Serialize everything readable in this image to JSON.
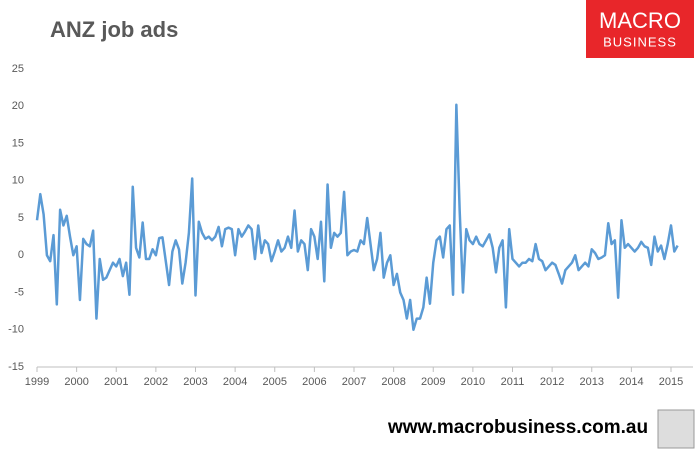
{
  "chart_data": {
    "type": "line",
    "title": "ANZ job ads",
    "categories": [
      "1999",
      null,
      null,
      null,
      null,
      null,
      null,
      null,
      null,
      null,
      null,
      null,
      "2000",
      null,
      null,
      null,
      null,
      null,
      null,
      null,
      null,
      null,
      null,
      null,
      "2001",
      null,
      null,
      null,
      null,
      null,
      null,
      null,
      null,
      null,
      null,
      null,
      "2002",
      null,
      null,
      null,
      null,
      null,
      null,
      null,
      null,
      null,
      null,
      null,
      "2003",
      null,
      null,
      null,
      null,
      null,
      null,
      null,
      null,
      null,
      null,
      null,
      "2004",
      null,
      null,
      null,
      null,
      null,
      null,
      null,
      null,
      null,
      null,
      null,
      "2005",
      null,
      null,
      null,
      null,
      null,
      null,
      null,
      null,
      null,
      null,
      null,
      "2006",
      null,
      null,
      null,
      null,
      null,
      null,
      null,
      null,
      null,
      null,
      null,
      "2007",
      null,
      null,
      null,
      null,
      null,
      null,
      null,
      null,
      null,
      null,
      null,
      "2008",
      null,
      null,
      null,
      null,
      null,
      null,
      null,
      null,
      null,
      null,
      null,
      "2009",
      null,
      null,
      null,
      null,
      null,
      null,
      null,
      null,
      null,
      null,
      null,
      "2010",
      null,
      null,
      null,
      null,
      null,
      null,
      null,
      null,
      null,
      null,
      null,
      "2011",
      null,
      null,
      null,
      null,
      null,
      null,
      null,
      null,
      null,
      null,
      null,
      "2012",
      null,
      null,
      null,
      null,
      null,
      null,
      null,
      null,
      null,
      null,
      null,
      "2013",
      null,
      null,
      null,
      null,
      null,
      null,
      null,
      null,
      null,
      null,
      null,
      "2014",
      null,
      null,
      null,
      null,
      null,
      null,
      null,
      null,
      null,
      null,
      null,
      "2015",
      null,
      null
    ],
    "values": [
      4.7,
      8.2,
      5.5,
      0,
      -0.8,
      2.7,
      -6.6,
      6.1,
      4,
      5.3,
      2.5,
      0,
      1.2,
      -6,
      2.2,
      1.5,
      1.2,
      3.3,
      -8.5,
      -0.5,
      -3.3,
      -3,
      -2,
      -1,
      -1.5,
      -0.5,
      -2.8,
      -1,
      -5.3,
      9.2,
      1,
      -0.3,
      4.4,
      -0.5,
      -0.5,
      0.8,
      0,
      2.3,
      2.4,
      -0.8,
      -4,
      0.5,
      2,
      0.8,
      -3.8,
      -1,
      3,
      10.3,
      -5.4,
      4.5,
      3,
      2.2,
      2.5,
      2,
      2.5,
      3.8,
      1.2,
      3.5,
      3.7,
      3.5,
      0,
      3.5,
      2.5,
      3.2,
      4,
      3.5,
      -0.5,
      4,
      0.3,
      2,
      1.5,
      -0.8,
      0.5,
      2,
      0.5,
      1,
      2.5,
      1,
      6,
      0.5,
      2,
      1.5,
      -2,
      3.5,
      2.5,
      -0.5,
      4.5,
      -3.5,
      9.5,
      1,
      3,
      2.5,
      3,
      8.5,
      0,
      0.5,
      0.7,
      0.5,
      2,
      1.5,
      5,
      1.5,
      -2,
      -0.5,
      3,
      -3,
      -1,
      0,
      -4,
      -2.5,
      -5,
      -6,
      -8.5,
      -6,
      -10,
      -8.5,
      -8.5,
      -7,
      -3,
      -6.5,
      -1,
      2,
      2.5,
      -0.3,
      3.5,
      4,
      -5.3,
      20.2,
      6,
      -5,
      3.5,
      2,
      1.5,
      2.5,
      1.5,
      1.2,
      2,
      2.8,
      1,
      -2.3,
      1,
      2,
      -7,
      3.5,
      -0.5,
      -1,
      -1.5,
      -1,
      -1,
      -0.5,
      -0.8,
      1.5,
      -0.5,
      -0.8,
      -2,
      -1.5,
      -1,
      -1.3,
      -2.5,
      -3.8,
      -2,
      -1.5,
      -1,
      0,
      -2,
      -1.5,
      -1,
      -1.5,
      0.8,
      0.3,
      -0.5,
      -0.3,
      0,
      4.3,
      1.5,
      2,
      -5.7,
      4.7,
      1,
      1.5,
      1,
      0.5,
      1,
      1.8,
      1.2,
      1,
      -1.3,
      2.5,
      0.5,
      1.3,
      -0.5,
      1.5,
      4,
      0.5,
      1.3
    ],
    "color": "#5b9bd5",
    "ylim": [
      -15,
      25
    ],
    "yticks": [
      -15,
      -10,
      -5,
      0,
      5,
      10,
      15,
      20,
      25
    ],
    "grid": false
  },
  "logo": {
    "line1": "MACRO",
    "line2": "BUSINESS"
  },
  "footer": "www.macrobusiness.com.au"
}
